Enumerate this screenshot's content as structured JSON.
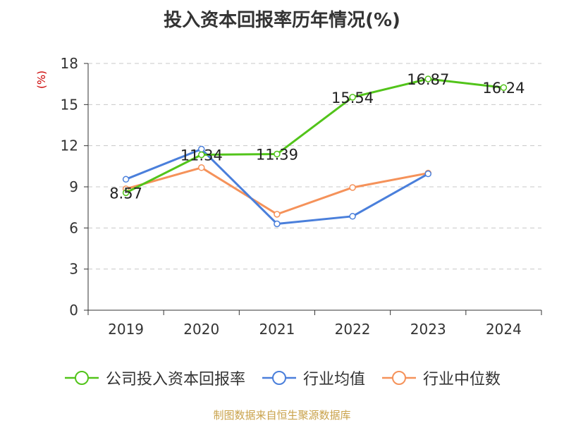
{
  "chart_data": {
    "type": "line",
    "title": "投入资本回报率历年情况(%)",
    "ylabel": "(%)",
    "xlabel": "",
    "categories": [
      "2019",
      "2020",
      "2021",
      "2022",
      "2023",
      "2024"
    ],
    "ylim": [
      0,
      18
    ],
    "yticks": [
      0,
      3,
      6,
      9,
      12,
      15,
      18
    ],
    "grid": true,
    "legend_position": "bottom",
    "series": [
      {
        "name": "公司投入资本回报率",
        "color": "#52c41a",
        "values": [
          8.57,
          11.34,
          11.39,
          15.54,
          16.87,
          16.24
        ],
        "data_labels": [
          "8.57",
          "11.34",
          "11.39",
          "15.54",
          "16.87",
          "16.24"
        ]
      },
      {
        "name": "行业均值",
        "color": "#4a7fdb",
        "values": [
          9.55,
          11.75,
          6.3,
          6.85,
          9.95,
          null
        ]
      },
      {
        "name": "行业中位数",
        "color": "#f5925a",
        "values": [
          8.85,
          10.4,
          7.0,
          8.95,
          10.0,
          null
        ]
      }
    ]
  },
  "source": "制图数据来自恒生聚源数据库"
}
